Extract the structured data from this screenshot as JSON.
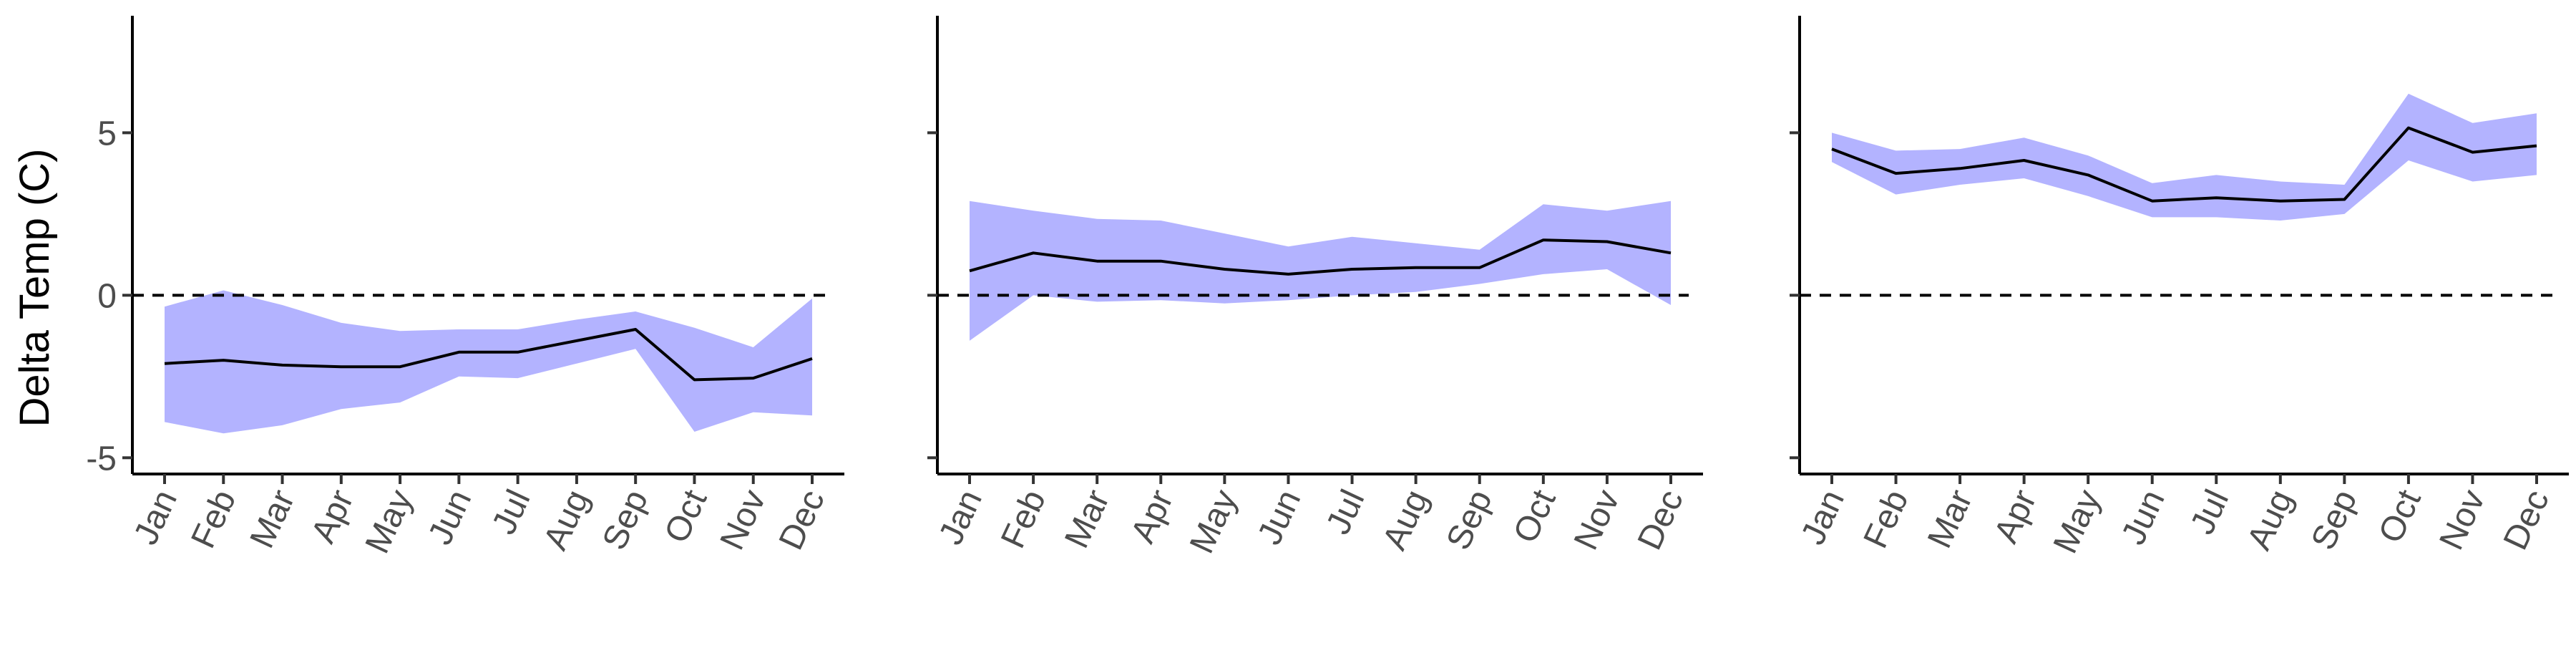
{
  "chart_data": {
    "type": "line",
    "ylabel": "Delta Temp (C)",
    "categories": [
      "Jan",
      "Feb",
      "Mar",
      "Apr",
      "May",
      "Jun",
      "Jul",
      "Aug",
      "Sep",
      "Oct",
      "Nov",
      "Dec"
    ],
    "ylim": [
      -5.5,
      8.6
    ],
    "yticks": [
      -5,
      0,
      5
    ],
    "reference_line": 0,
    "grid": false,
    "colors": {
      "band": "#b3b3ff",
      "line": "#000000",
      "reference": "#000000"
    },
    "panels": [
      {
        "mean": [
          -2.1,
          -2.0,
          -2.15,
          -2.2,
          -2.2,
          -1.75,
          -1.75,
          -1.4,
          -1.05,
          -2.6,
          -2.55,
          -1.95
        ],
        "lower": [
          -3.9,
          -4.25,
          -4.0,
          -3.5,
          -3.3,
          -2.5,
          -2.55,
          -2.1,
          -1.65,
          -4.2,
          -3.6,
          -3.7
        ],
        "upper": [
          -0.35,
          0.15,
          -0.3,
          -0.85,
          -1.1,
          -1.05,
          -1.05,
          -0.75,
          -0.5,
          -1.0,
          -1.6,
          -0.1
        ]
      },
      {
        "mean": [
          0.75,
          1.3,
          1.05,
          1.05,
          0.8,
          0.65,
          0.8,
          0.85,
          0.85,
          1.7,
          1.65,
          1.3
        ],
        "lower": [
          -1.4,
          0.0,
          -0.2,
          -0.15,
          -0.25,
          -0.15,
          0.0,
          0.1,
          0.35,
          0.65,
          0.8,
          -0.3
        ],
        "upper": [
          2.9,
          2.6,
          2.35,
          2.3,
          1.9,
          1.5,
          1.8,
          1.6,
          1.4,
          2.8,
          2.6,
          2.9
        ]
      },
      {
        "mean": [
          4.5,
          3.75,
          3.9,
          4.15,
          3.7,
          2.9,
          3.0,
          2.9,
          2.95,
          5.15,
          4.4,
          4.6
        ],
        "lower": [
          4.1,
          3.1,
          3.4,
          3.6,
          3.05,
          2.4,
          2.4,
          2.3,
          2.5,
          4.15,
          3.5,
          3.7
        ],
        "upper": [
          5.0,
          4.45,
          4.5,
          4.85,
          4.3,
          3.45,
          3.7,
          3.5,
          3.4,
          6.2,
          5.3,
          5.6
        ]
      }
    ]
  }
}
